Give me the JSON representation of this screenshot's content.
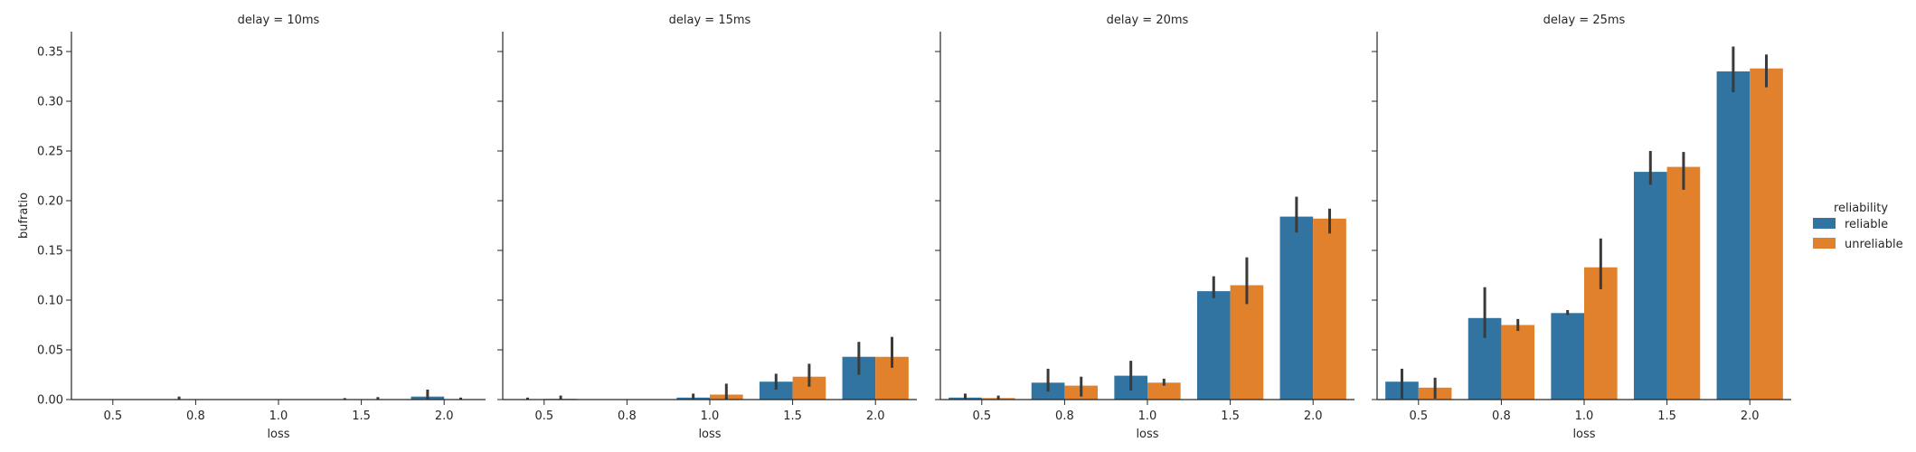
{
  "chart_data": {
    "type": "bar",
    "facet_variable": "delay",
    "categories": [
      "0.5",
      "0.8",
      "1.0",
      "1.5",
      "2.0"
    ],
    "xlabel": "loss",
    "ylabel": "bufratio",
    "ylim": [
      0,
      0.37
    ],
    "yticks": [
      "0.00",
      "0.05",
      "0.10",
      "0.15",
      "0.20",
      "0.25",
      "0.30",
      "0.35"
    ],
    "legend": {
      "title": "reliability",
      "position": "right",
      "entries": [
        "reliable",
        "unreliable"
      ]
    },
    "error_bar_color": "#3a3a3a",
    "panels": [
      {
        "title": "delay = 10ms",
        "series": [
          {
            "name": "reliable",
            "color": "#3274a1",
            "values": [
              0.0,
              0.0004,
              0.0,
              0.0004,
              0.003
            ],
            "ci": [
              [
                0,
                0
              ],
              [
                0,
                0.003
              ],
              [
                0,
                0
              ],
              [
                0,
                0.0015
              ],
              [
                0,
                0.01
              ]
            ]
          },
          {
            "name": "unreliable",
            "color": "#e1812c",
            "values": [
              0.0,
              0.0,
              0.0,
              0.0004,
              0.0004
            ],
            "ci": [
              [
                0,
                0
              ],
              [
                0,
                0
              ],
              [
                0,
                0
              ],
              [
                0,
                0.0025
              ],
              [
                0,
                0.002
              ]
            ]
          }
        ]
      },
      {
        "title": "delay = 15ms",
        "series": [
          {
            "name": "reliable",
            "color": "#3274a1",
            "values": [
              0.0003,
              0.0,
              0.002,
              0.018,
              0.043
            ],
            "ci": [
              [
                0,
                0.002
              ],
              [
                0,
                0
              ],
              [
                0,
                0.006
              ],
              [
                0.01,
                0.026
              ],
              [
                0.025,
                0.058
              ]
            ]
          },
          {
            "name": "unreliable",
            "color": "#e1812c",
            "values": [
              0.0008,
              0.0,
              0.005,
              0.023,
              0.043
            ],
            "ci": [
              [
                0,
                0.004
              ],
              [
                0,
                0
              ],
              [
                0,
                0.016
              ],
              [
                0.013,
                0.036
              ],
              [
                0.032,
                0.063
              ]
            ]
          }
        ]
      },
      {
        "title": "delay = 20ms",
        "series": [
          {
            "name": "reliable",
            "color": "#3274a1",
            "values": [
              0.002,
              0.017,
              0.024,
              0.109,
              0.184
            ],
            "ci": [
              [
                0,
                0.006
              ],
              [
                0.008,
                0.031
              ],
              [
                0.009,
                0.039
              ],
              [
                0.102,
                0.124
              ],
              [
                0.168,
                0.204
              ]
            ]
          },
          {
            "name": "unreliable",
            "color": "#e1812c",
            "values": [
              0.0015,
              0.014,
              0.017,
              0.115,
              0.182
            ],
            "ci": [
              [
                0,
                0.004
              ],
              [
                0.003,
                0.023
              ],
              [
                0.014,
                0.021
              ],
              [
                0.096,
                0.143
              ],
              [
                0.167,
                0.192
              ]
            ]
          }
        ]
      },
      {
        "title": "delay = 25ms",
        "series": [
          {
            "name": "reliable",
            "color": "#3274a1",
            "values": [
              0.018,
              0.082,
              0.087,
              0.229,
              0.33
            ],
            "ci": [
              [
                0.001,
                0.031
              ],
              [
                0.062,
                0.113
              ],
              [
                0.085,
                0.09
              ],
              [
                0.216,
                0.25
              ],
              [
                0.309,
                0.355
              ]
            ]
          },
          {
            "name": "unreliable",
            "color": "#e1812c",
            "values": [
              0.012,
              0.075,
              0.133,
              0.234,
              0.333
            ],
            "ci": [
              [
                0.001,
                0.022
              ],
              [
                0.069,
                0.081
              ],
              [
                0.111,
                0.162
              ],
              [
                0.211,
                0.249
              ],
              [
                0.314,
                0.347
              ]
            ]
          }
        ]
      }
    ]
  }
}
